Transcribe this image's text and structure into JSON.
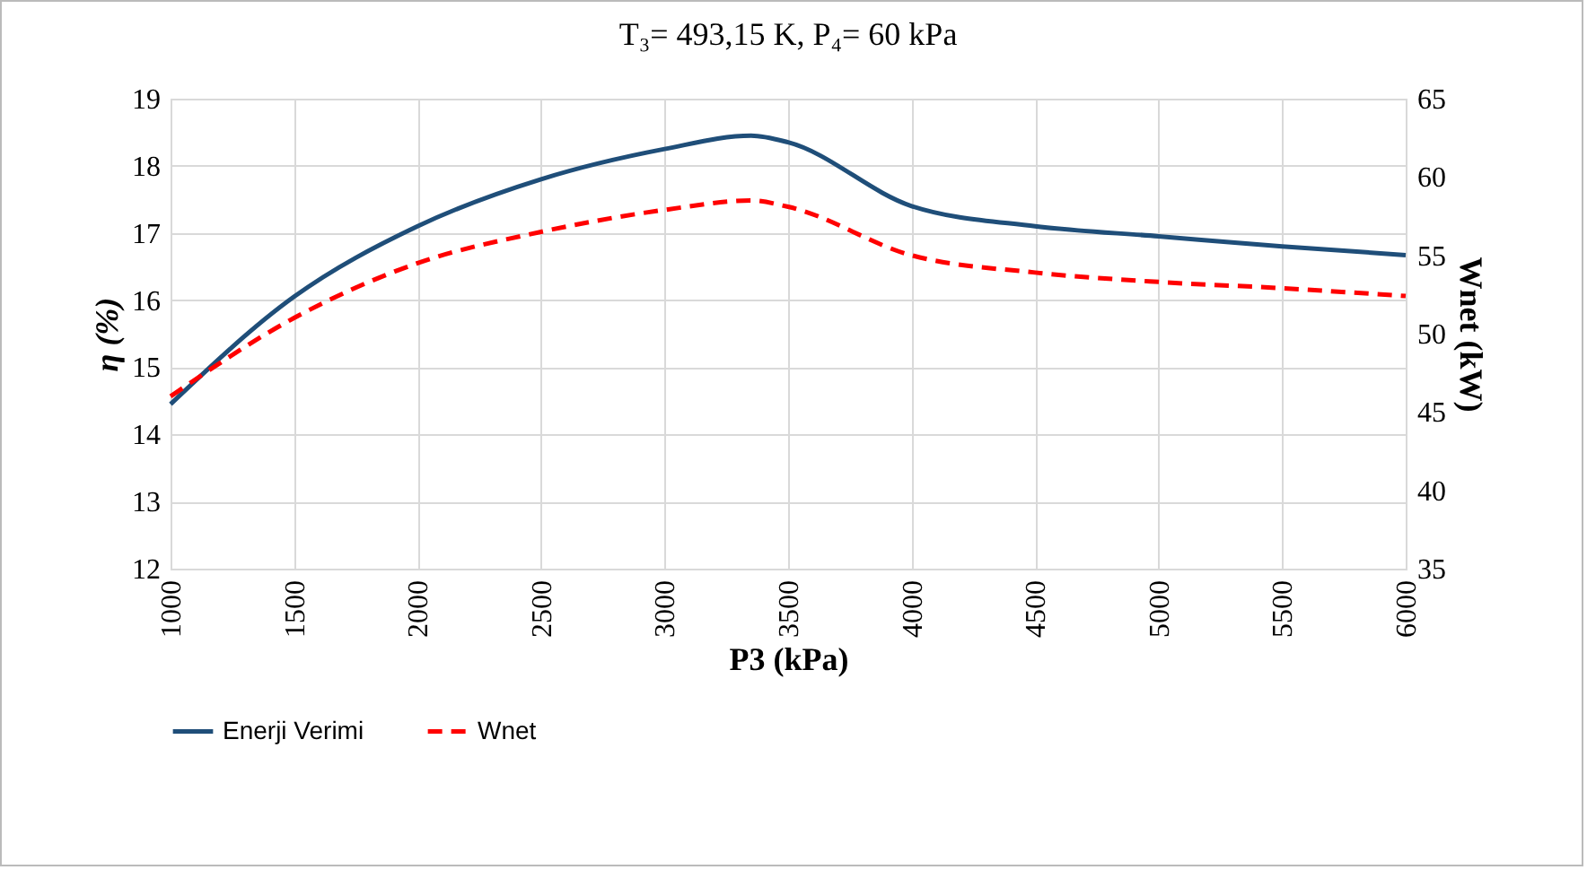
{
  "chart_data": {
    "type": "line",
    "title": "T₃= 493,15 K, P₄= 60 kPa",
    "xlabel": "P3 (kPa)",
    "ylabel": "η (%)",
    "y2label": "Wnet (kW)",
    "x": [
      1000,
      1500,
      2000,
      2500,
      3000,
      3350,
      3500,
      4000,
      4500,
      5000,
      5500,
      6000
    ],
    "series": [
      {
        "name": "Enerji Verimi",
        "color": "#1f4e79",
        "line_style": "solid",
        "values": [
          14.45,
          16.05,
          17.1,
          17.8,
          18.25,
          18.45,
          18.35,
          17.4,
          17.1,
          16.95,
          16.8,
          16.67
        ]
      },
      {
        "name": "Wnet",
        "color": "#ff0000",
        "line_style": "dashed",
        "axis": "y2",
        "values": [
          46.0,
          51.0,
          54.5,
          56.5,
          57.9,
          58.5,
          58.1,
          55.0,
          53.9,
          53.3,
          52.9,
          52.4
        ]
      }
    ],
    "xlim": [
      1000,
      6000
    ],
    "xticks": [
      1000,
      1500,
      2000,
      2500,
      3000,
      3500,
      4000,
      4500,
      5000,
      5500,
      6000
    ],
    "ylim": [
      12,
      19
    ],
    "yticks": [
      12,
      13,
      14,
      15,
      16,
      17,
      18,
      19
    ],
    "y2lim": [
      35,
      65
    ],
    "y2ticks": [
      35,
      40,
      45,
      50,
      55,
      60,
      65
    ],
    "grid": true,
    "legend": "bottom",
    "marker": "none"
  }
}
